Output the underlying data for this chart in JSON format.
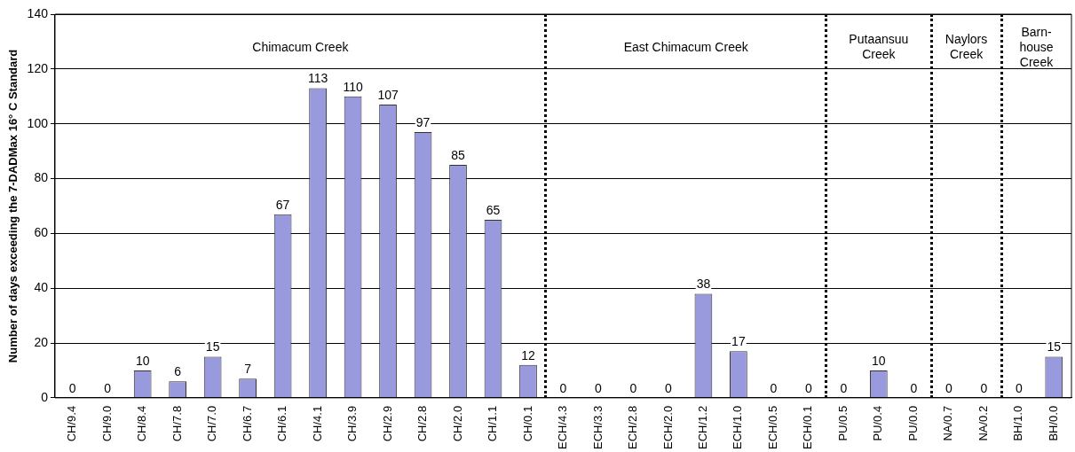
{
  "chart_data": {
    "type": "bar",
    "ylabel": "Number of days exceeding the 7-DADMax 16° C Standard",
    "categories": [
      "CH/9.4",
      "CH/9.0",
      "CH/8.4",
      "CH/7.8",
      "CH/7.0",
      "CH/6.7",
      "CH/6.1",
      "CH/4.1",
      "CH/3.9",
      "CH/2.9",
      "CH/2.8",
      "CH/2.0",
      "CH/1.1",
      "CH/0.1",
      "ECH/4.3",
      "ECH/3.3",
      "ECH/2.8",
      "ECH/2.0",
      "ECH/1.2",
      "ECH/1.0",
      "ECH/0.5",
      "ECH/0.1",
      "PU/0.5",
      "PU/0.4",
      "PU/0.0",
      "NA/0.7",
      "NA/0.2",
      "BH/1.0",
      "BH/0.0"
    ],
    "values": [
      0,
      0,
      10,
      6,
      15,
      7,
      67,
      113,
      110,
      107,
      97,
      85,
      65,
      12,
      0,
      0,
      0,
      0,
      38,
      17,
      0,
      0,
      0,
      10,
      0,
      0,
      0,
      0,
      15
    ],
    "color": "#9999dd",
    "data_labels": true,
    "ylim": [
      0,
      140
    ],
    "yticks": [
      0,
      20,
      40,
      60,
      80,
      100,
      120,
      140
    ],
    "grid": "y",
    "legend": false,
    "annotations": [
      "Chimacum Creek",
      "East Chimacum Creek",
      "Putaansuu\nCreek",
      "Naylors\nCreek",
      "Barn-\nhouse\nCreek"
    ]
  }
}
